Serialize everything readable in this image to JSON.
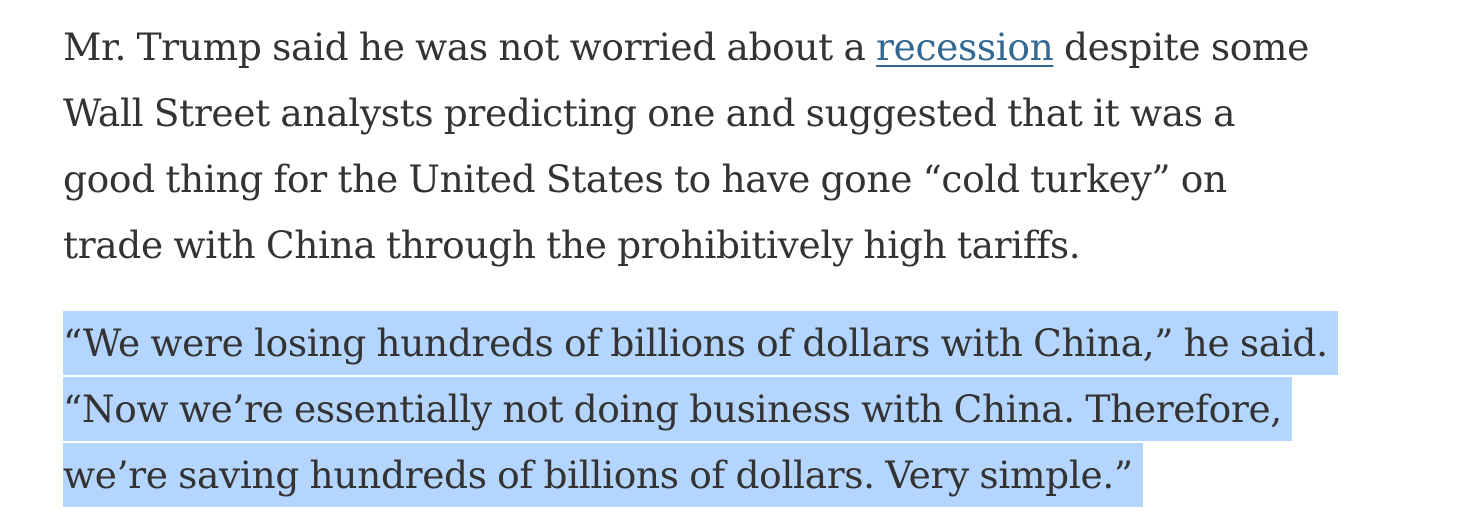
{
  "article": {
    "paragraph_1": {
      "line_1_before": "Mr. Trump said he was not worried about a ",
      "link_text": "recession",
      "line_1_after": " despite some",
      "line_2": "Wall Street analysts predicting one and suggested that it was a",
      "line_3": "good thing for the United States to have gone “cold turkey” on",
      "line_4": "trade with China through the prohibitively high tariffs."
    },
    "paragraph_2": {
      "line_1": "“We were losing hundreds of billions of dollars with China,” he said.",
      "line_2": "“Now we’re essentially not doing business with China. Therefore,",
      "line_3": "we’re saving hundreds of billions of dollars. Very simple.”"
    }
  },
  "colors": {
    "text": "#333333",
    "link": "#326891",
    "selection_highlight": "#b4d5fd"
  }
}
